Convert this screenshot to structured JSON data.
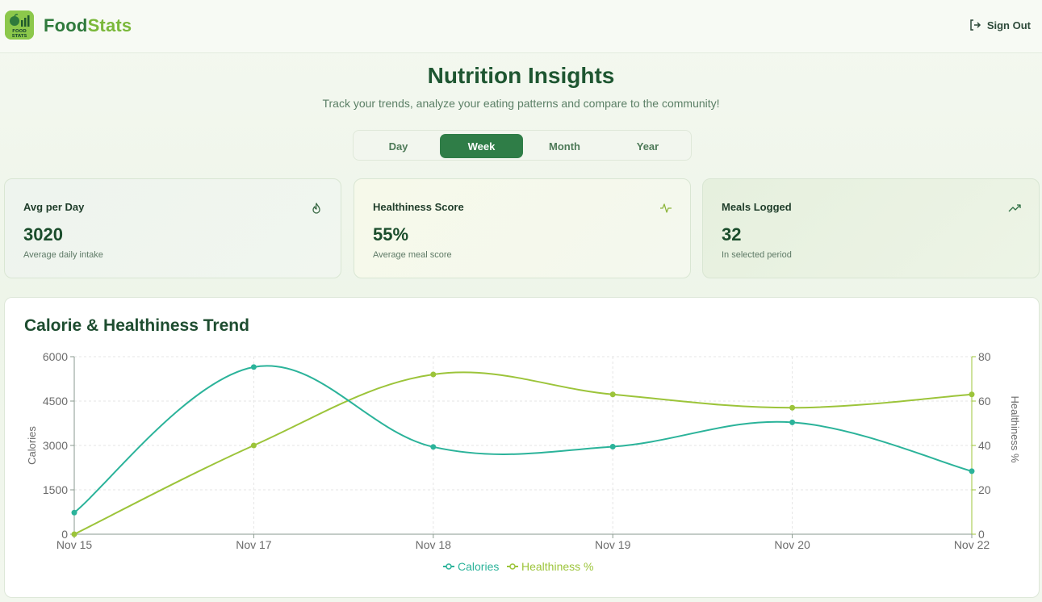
{
  "app": {
    "brand_part1": "Food",
    "brand_part2": "Stats",
    "logo_text_line1": "FOOD",
    "logo_text_line2": "STATS",
    "sign_out_label": "Sign Out"
  },
  "page": {
    "title": "Nutrition Insights",
    "subtitle": "Track your trends, analyze your eating patterns and compare to the community!"
  },
  "period_tabs": [
    {
      "label": "Day",
      "active": false
    },
    {
      "label": "Week",
      "active": true
    },
    {
      "label": "Month",
      "active": false
    },
    {
      "label": "Year",
      "active": false
    }
  ],
  "stat_cards": [
    {
      "title": "Avg per Day",
      "value": "3020",
      "sub": "Average daily intake",
      "icon": "flame-icon"
    },
    {
      "title": "Healthiness Score",
      "value": "55%",
      "sub": "Average meal score",
      "icon": "activity-icon"
    },
    {
      "title": "Meals Logged",
      "value": "32",
      "sub": "In selected period",
      "icon": "trending-up-icon"
    }
  ],
  "colors": {
    "calories": "#2bb39a",
    "healthiness": "#9cc43a",
    "accent": "#2f7d47"
  },
  "chart_data": {
    "type": "line",
    "title": "Calorie & Healthiness Trend",
    "categories": [
      "Nov 15",
      "Nov 17",
      "Nov 18",
      "Nov 19",
      "Nov 20",
      "Nov 22"
    ],
    "series": [
      {
        "name": "Calories",
        "axis": "left",
        "values": [
          730,
          5650,
          2950,
          2960,
          3780,
          2130
        ]
      },
      {
        "name": "Healthiness %",
        "axis": "right",
        "values": [
          0,
          40,
          72,
          63,
          57,
          63
        ]
      }
    ],
    "ylabel_left": "Calories",
    "ylabel_right": "Healthiness %",
    "ylim_left": [
      0,
      6000
    ],
    "ylim_right": [
      0,
      80
    ],
    "yticks_left": [
      "0",
      "1500",
      "3000",
      "4500",
      "6000"
    ],
    "yticks_right": [
      "0",
      "20",
      "40",
      "60",
      "80"
    ],
    "grid": true,
    "legend": "bottom-center"
  }
}
